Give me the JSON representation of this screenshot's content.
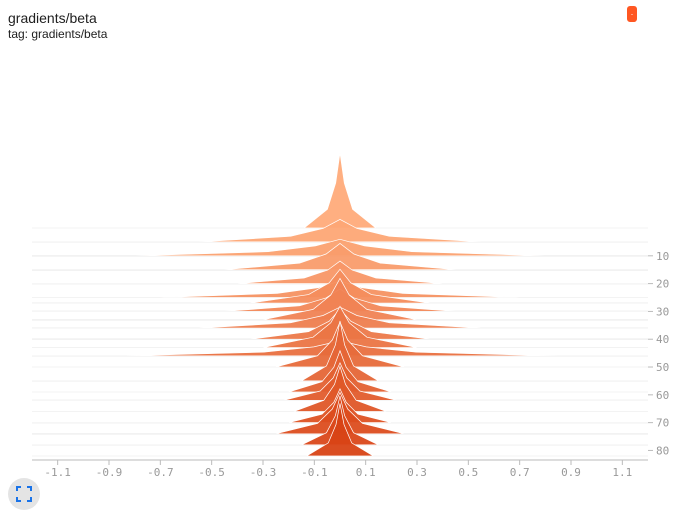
{
  "card": {
    "title": "gradients/beta",
    "tag_label": "tag: gradients/beta",
    "color_chip_label": ".",
    "color_chip_color": "#ff5722"
  },
  "icons": {
    "expand": "fullscreen-icon"
  },
  "colors": {
    "front": "#d84315",
    "back": "#ffab7a",
    "outline": "#ffffff",
    "baseline": "#cccccc",
    "axis": "#bbbbbb",
    "ticks_text": "#999999"
  },
  "chart_data": {
    "type": "histogram-offset",
    "title": "gradients/beta",
    "x_ticks": [
      -1.1,
      -0.9,
      -0.7,
      -0.5,
      -0.3,
      -0.1,
      0.1,
      0.3,
      0.5,
      0.7,
      0.9,
      1.1
    ],
    "x_tick_labels": [
      "-1.1",
      "-0.9",
      "-0.7",
      "-0.5",
      "-0.3",
      "-0.1",
      "0.1",
      "0.3",
      "0.5",
      "0.7",
      "0.9",
      "1.1"
    ],
    "xlim": [
      -1.2,
      1.2
    ],
    "step_ticks": [
      10,
      20,
      30,
      40,
      50,
      60,
      70,
      80
    ],
    "step_tick_labels": [
      "10",
      "20",
      "30",
      "40",
      "50",
      "60",
      "70",
      "80"
    ],
    "step_range": [
      0,
      82
    ],
    "center": 0.0,
    "series": [
      {
        "step": 0,
        "width": 0.14,
        "peak": 1.0
      },
      {
        "step": 5,
        "width": 0.55,
        "peak": 0.3
      },
      {
        "step": 10,
        "width": 0.8,
        "peak": 0.22
      },
      {
        "step": 15,
        "width": 0.45,
        "peak": 0.35
      },
      {
        "step": 20,
        "width": 0.4,
        "peak": 0.3
      },
      {
        "step": 25,
        "width": 0.7,
        "peak": 0.22
      },
      {
        "step": 27,
        "width": 0.35,
        "peak": 0.45
      },
      {
        "step": 30,
        "width": 0.45,
        "peak": 0.3
      },
      {
        "step": 33,
        "width": 0.3,
        "peak": 0.55
      },
      {
        "step": 36,
        "width": 0.55,
        "peak": 0.28
      },
      {
        "step": 40,
        "width": 0.35,
        "peak": 0.4
      },
      {
        "step": 43,
        "width": 0.3,
        "peak": 0.55
      },
      {
        "step": 46,
        "width": 0.85,
        "peak": 0.2
      },
      {
        "step": 50,
        "width": 0.25,
        "peak": 0.6
      },
      {
        "step": 55,
        "width": 0.15,
        "peak": 0.8
      },
      {
        "step": 59,
        "width": 0.2,
        "peak": 0.55
      },
      {
        "step": 62,
        "width": 0.22,
        "peak": 0.5
      },
      {
        "step": 66,
        "width": 0.18,
        "peak": 0.6
      },
      {
        "step": 70,
        "width": 0.2,
        "peak": 0.45
      },
      {
        "step": 74,
        "width": 0.25,
        "peak": 0.55
      },
      {
        "step": 78,
        "width": 0.15,
        "peak": 0.65
      },
      {
        "step": 82,
        "width": 0.13,
        "peak": 0.7
      }
    ]
  }
}
